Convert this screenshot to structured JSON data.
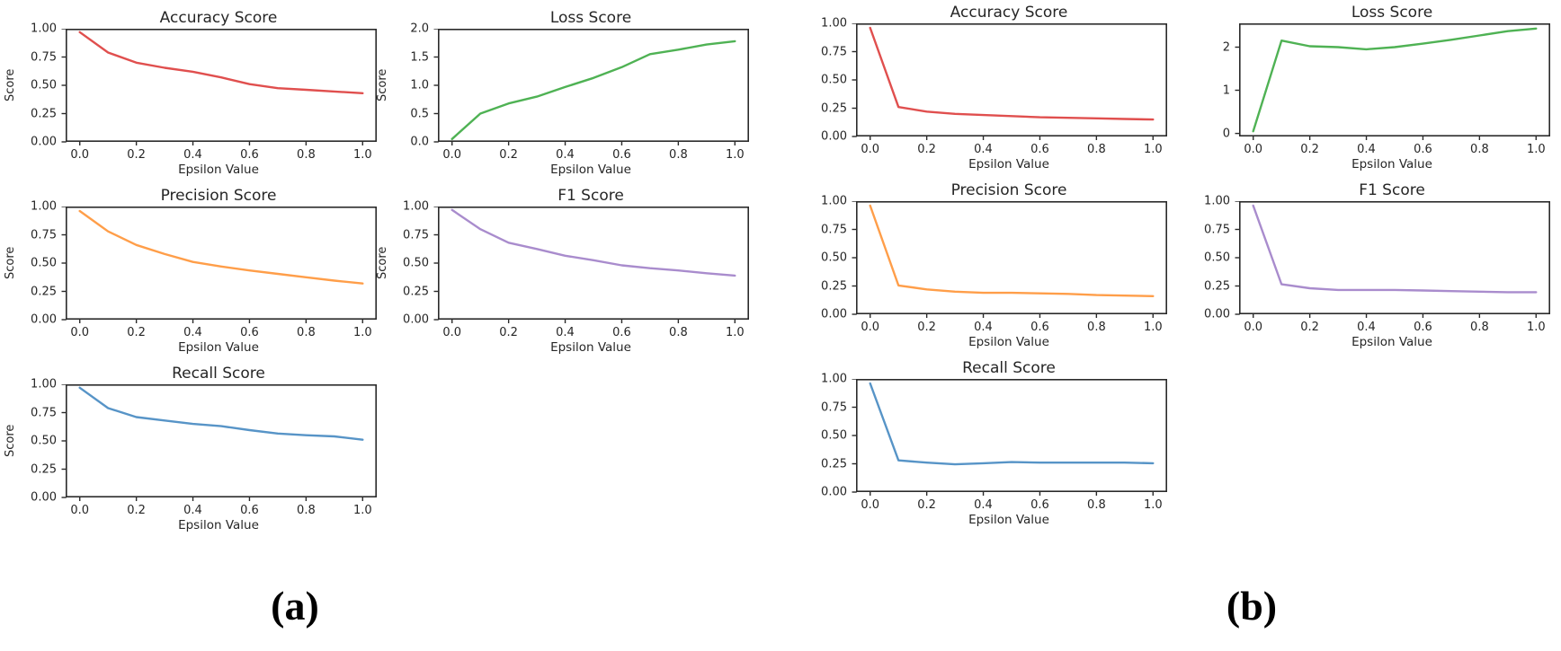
{
  "page": {
    "background": "#ffffff"
  },
  "captions": {
    "a": "(a)",
    "b": "(b)"
  },
  "chart_data": [
    {
      "id": "a-accuracy",
      "panel": "a",
      "type": "line",
      "title": "Accuracy Score",
      "xlabel": "Epsilon Value",
      "ylabel": "Score",
      "color": "#e04f4e",
      "grid": false,
      "legend": "none",
      "x": [
        0.0,
        0.1,
        0.2,
        0.3,
        0.4,
        0.5,
        0.6,
        0.7,
        0.8,
        0.9,
        1.0
      ],
      "y": [
        0.97,
        0.79,
        0.7,
        0.655,
        0.62,
        0.57,
        0.51,
        0.475,
        0.46,
        0.445,
        0.43
      ],
      "xlim": [
        -0.05,
        1.05
      ],
      "ylim": [
        0,
        1
      ],
      "xticks": {
        "values": [
          0.0,
          0.2,
          0.4,
          0.6,
          0.8,
          1.0
        ],
        "labels": [
          "0.0",
          "0.2",
          "0.4",
          "0.6",
          "0.8",
          "1.0"
        ]
      },
      "yticks": {
        "values": [
          0,
          0.25,
          0.5,
          0.75,
          1.0
        ],
        "labels": [
          "0.00",
          "0.25",
          "0.50",
          "0.75",
          "1.00"
        ]
      }
    },
    {
      "id": "a-loss",
      "panel": "a",
      "type": "line",
      "title": "Loss Score",
      "xlabel": "Epsilon Value",
      "ylabel": "Score",
      "color": "#4fb254",
      "grid": false,
      "legend": "none",
      "x": [
        0.0,
        0.1,
        0.2,
        0.3,
        0.4,
        0.5,
        0.6,
        0.7,
        0.8,
        0.9,
        1.0
      ],
      "y": [
        0.05,
        0.5,
        0.68,
        0.8,
        0.97,
        1.13,
        1.32,
        1.55,
        1.63,
        1.72,
        1.78
      ],
      "xlim": [
        -0.05,
        1.05
      ],
      "ylim": [
        0,
        2
      ],
      "xticks": {
        "values": [
          0.0,
          0.2,
          0.4,
          0.6,
          0.8,
          1.0
        ],
        "labels": [
          "0.0",
          "0.2",
          "0.4",
          "0.6",
          "0.8",
          "1.0"
        ]
      },
      "yticks": {
        "values": [
          0,
          0.5,
          1.0,
          1.5,
          2.0
        ],
        "labels": [
          "0.0",
          "0.5",
          "1.0",
          "1.5",
          "2.0"
        ]
      }
    },
    {
      "id": "a-precision",
      "panel": "a",
      "type": "line",
      "title": "Precision Score",
      "xlabel": "Epsilon Value",
      "ylabel": "Score",
      "color": "#ff9e49",
      "grid": false,
      "legend": "none",
      "x": [
        0.0,
        0.1,
        0.2,
        0.3,
        0.4,
        0.5,
        0.6,
        0.7,
        0.8,
        0.9,
        1.0
      ],
      "y": [
        0.96,
        0.78,
        0.66,
        0.58,
        0.51,
        0.47,
        0.435,
        0.405,
        0.375,
        0.345,
        0.32
      ],
      "xlim": [
        -0.05,
        1.05
      ],
      "ylim": [
        0,
        1
      ],
      "xticks": {
        "values": [
          0.0,
          0.2,
          0.4,
          0.6,
          0.8,
          1.0
        ],
        "labels": [
          "0.0",
          "0.2",
          "0.4",
          "0.6",
          "0.8",
          "1.0"
        ]
      },
      "yticks": {
        "values": [
          0,
          0.25,
          0.5,
          0.75,
          1.0
        ],
        "labels": [
          "0.00",
          "0.25",
          "0.50",
          "0.75",
          "1.00"
        ]
      }
    },
    {
      "id": "a-f1",
      "panel": "a",
      "type": "line",
      "title": "F1 Score",
      "xlabel": "Epsilon Value",
      "ylabel": "Score",
      "color": "#a98ccd",
      "grid": false,
      "legend": "none",
      "x": [
        0.0,
        0.1,
        0.2,
        0.3,
        0.4,
        0.5,
        0.6,
        0.7,
        0.8,
        0.9,
        1.0
      ],
      "y": [
        0.97,
        0.8,
        0.68,
        0.625,
        0.565,
        0.525,
        0.48,
        0.455,
        0.435,
        0.41,
        0.39
      ],
      "xlim": [
        -0.05,
        1.05
      ],
      "ylim": [
        0,
        1
      ],
      "xticks": {
        "values": [
          0.0,
          0.2,
          0.4,
          0.6,
          0.8,
          1.0
        ],
        "labels": [
          "0.0",
          "0.2",
          "0.4",
          "0.6",
          "0.8",
          "1.0"
        ]
      },
      "yticks": {
        "values": [
          0,
          0.25,
          0.5,
          0.75,
          1.0
        ],
        "labels": [
          "0.00",
          "0.25",
          "0.50",
          "0.75",
          "1.00"
        ]
      }
    },
    {
      "id": "a-recall",
      "panel": "a",
      "type": "line",
      "title": "Recall Score",
      "xlabel": "Epsilon Value",
      "ylabel": "Score",
      "color": "#5794c7",
      "grid": false,
      "legend": "none",
      "x": [
        0.0,
        0.1,
        0.2,
        0.3,
        0.4,
        0.5,
        0.6,
        0.7,
        0.8,
        0.9,
        1.0
      ],
      "y": [
        0.97,
        0.79,
        0.71,
        0.68,
        0.65,
        0.63,
        0.595,
        0.565,
        0.55,
        0.54,
        0.51
      ],
      "xlim": [
        -0.05,
        1.05
      ],
      "ylim": [
        0,
        1
      ],
      "xticks": {
        "values": [
          0.0,
          0.2,
          0.4,
          0.6,
          0.8,
          1.0
        ],
        "labels": [
          "0.0",
          "0.2",
          "0.4",
          "0.6",
          "0.8",
          "1.0"
        ]
      },
      "yticks": {
        "values": [
          0,
          0.25,
          0.5,
          0.75,
          1.0
        ],
        "labels": [
          "0.00",
          "0.25",
          "0.50",
          "0.75",
          "1.00"
        ]
      }
    },
    {
      "id": "b-accuracy",
      "panel": "b",
      "type": "line",
      "title": "Accuracy Score",
      "xlabel": "Epsilon Value",
      "ylabel": "",
      "color": "#e04f4e",
      "grid": false,
      "legend": "none",
      "x": [
        0.0,
        0.1,
        0.2,
        0.3,
        0.4,
        0.5,
        0.6,
        0.7,
        0.8,
        0.9,
        1.0
      ],
      "y": [
        0.96,
        0.26,
        0.22,
        0.2,
        0.19,
        0.18,
        0.17,
        0.165,
        0.16,
        0.155,
        0.15
      ],
      "xlim": [
        -0.05,
        1.05
      ],
      "ylim": [
        0,
        1
      ],
      "xticks": {
        "values": [
          0.0,
          0.2,
          0.4,
          0.6,
          0.8,
          1.0
        ],
        "labels": [
          "0.0",
          "0.2",
          "0.4",
          "0.6",
          "0.8",
          "1.0"
        ]
      },
      "yticks": {
        "values": [
          0,
          0.25,
          0.5,
          0.75,
          1.0
        ],
        "labels": [
          "0.00",
          "0.25",
          "0.50",
          "0.75",
          "1.00"
        ]
      }
    },
    {
      "id": "b-loss",
      "panel": "b",
      "type": "line",
      "title": "Loss Score",
      "xlabel": "Epsilon Value",
      "ylabel": "",
      "color": "#4fb254",
      "grid": false,
      "legend": "none",
      "x": [
        0.0,
        0.1,
        0.2,
        0.3,
        0.4,
        0.5,
        0.6,
        0.7,
        0.8,
        0.9,
        1.0
      ],
      "y": [
        0.05,
        2.15,
        2.02,
        2.0,
        1.95,
        2.0,
        2.08,
        2.17,
        2.27,
        2.37,
        2.43
      ],
      "xlim": [
        -0.05,
        1.05
      ],
      "ylim": [
        -0.07,
        2.55
      ],
      "xticks": {
        "values": [
          0.0,
          0.2,
          0.4,
          0.6,
          0.8,
          1.0
        ],
        "labels": [
          "0.0",
          "0.2",
          "0.4",
          "0.6",
          "0.8",
          "1.0"
        ]
      },
      "yticks": {
        "values": [
          0,
          1,
          2
        ],
        "labels": [
          "0",
          "1",
          "2"
        ]
      }
    },
    {
      "id": "b-precision",
      "panel": "b",
      "type": "line",
      "title": "Precision Score",
      "xlabel": "Epsilon Value",
      "ylabel": "",
      "color": "#ff9e49",
      "grid": false,
      "legend": "none",
      "x": [
        0.0,
        0.1,
        0.2,
        0.3,
        0.4,
        0.5,
        0.6,
        0.7,
        0.8,
        0.9,
        1.0
      ],
      "y": [
        0.96,
        0.255,
        0.22,
        0.2,
        0.19,
        0.19,
        0.185,
        0.18,
        0.17,
        0.165,
        0.16
      ],
      "xlim": [
        -0.05,
        1.05
      ],
      "ylim": [
        0,
        1
      ],
      "xticks": {
        "values": [
          0.0,
          0.2,
          0.4,
          0.6,
          0.8,
          1.0
        ],
        "labels": [
          "0.0",
          "0.2",
          "0.4",
          "0.6",
          "0.8",
          "1.0"
        ]
      },
      "yticks": {
        "values": [
          0,
          0.25,
          0.5,
          0.75,
          1.0
        ],
        "labels": [
          "0.00",
          "0.25",
          "0.50",
          "0.75",
          "1.00"
        ]
      }
    },
    {
      "id": "b-f1",
      "panel": "b",
      "type": "line",
      "title": "F1 Score",
      "xlabel": "Epsilon Value",
      "ylabel": "",
      "color": "#a98ccd",
      "grid": false,
      "legend": "none",
      "x": [
        0.0,
        0.1,
        0.2,
        0.3,
        0.4,
        0.5,
        0.6,
        0.7,
        0.8,
        0.9,
        1.0
      ],
      "y": [
        0.96,
        0.265,
        0.23,
        0.215,
        0.215,
        0.215,
        0.21,
        0.205,
        0.2,
        0.195,
        0.195
      ],
      "xlim": [
        -0.05,
        1.05
      ],
      "ylim": [
        0,
        1
      ],
      "xticks": {
        "values": [
          0.0,
          0.2,
          0.4,
          0.6,
          0.8,
          1.0
        ],
        "labels": [
          "0.0",
          "0.2",
          "0.4",
          "0.6",
          "0.8",
          "1.0"
        ]
      },
      "yticks": {
        "values": [
          0,
          0.25,
          0.5,
          0.75,
          1.0
        ],
        "labels": [
          "0.00",
          "0.25",
          "0.50",
          "0.75",
          "1.00"
        ]
      }
    },
    {
      "id": "b-recall",
      "panel": "b",
      "type": "line",
      "title": "Recall Score",
      "xlabel": "Epsilon Value",
      "ylabel": "",
      "color": "#5794c7",
      "grid": false,
      "legend": "none",
      "x": [
        0.0,
        0.1,
        0.2,
        0.3,
        0.4,
        0.5,
        0.6,
        0.7,
        0.8,
        0.9,
        1.0
      ],
      "y": [
        0.96,
        0.28,
        0.26,
        0.245,
        0.255,
        0.265,
        0.26,
        0.26,
        0.26,
        0.26,
        0.255
      ],
      "xlim": [
        -0.05,
        1.05
      ],
      "ylim": [
        0,
        1
      ],
      "xticks": {
        "values": [
          0.0,
          0.2,
          0.4,
          0.6,
          0.8,
          1.0
        ],
        "labels": [
          "0.0",
          "0.2",
          "0.4",
          "0.6",
          "0.8",
          "1.0"
        ]
      },
      "yticks": {
        "values": [
          0,
          0.25,
          0.5,
          0.75,
          1.0
        ],
        "labels": [
          "0.00",
          "0.25",
          "0.50",
          "0.75",
          "1.00"
        ]
      }
    }
  ]
}
